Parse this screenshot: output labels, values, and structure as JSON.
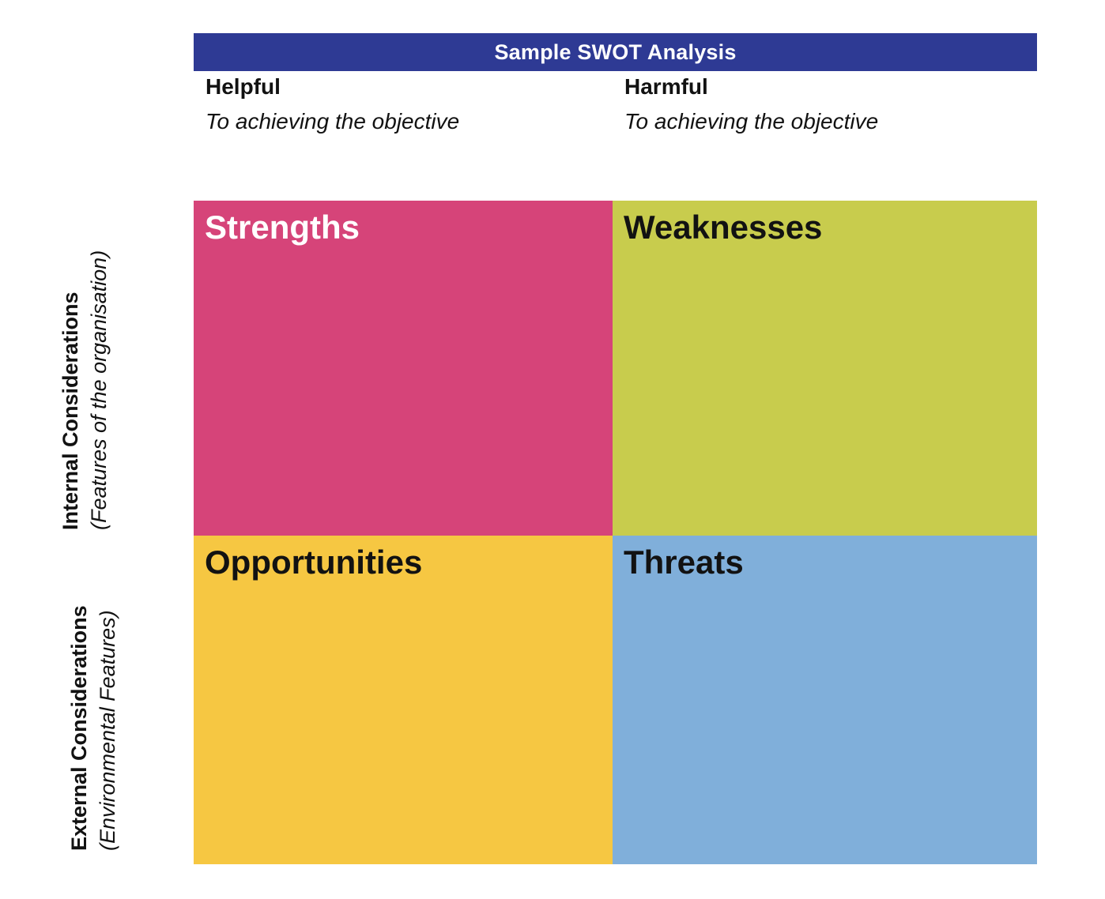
{
  "header": {
    "title": "Sample SWOT Analysis",
    "bg": "#2E3A94",
    "text_color": "#FFFFFF"
  },
  "columns": [
    {
      "label": "Helpful",
      "sublabel": "To achieving the objective"
    },
    {
      "label": "Harmful",
      "sublabel": "To achieving the objective"
    }
  ],
  "rows": [
    {
      "label": "Internal Considerations",
      "sublabel": "(Features of the organisation)"
    },
    {
      "label": "External Considerations",
      "sublabel": "(Environmental Features)"
    }
  ],
  "quadrants": [
    {
      "label": "Strengths",
      "bg": "#D64479",
      "text_color": "#FFFFFF"
    },
    {
      "label": "Weaknesses",
      "bg": "#C8CC4D",
      "text_color": "#121212"
    },
    {
      "label": "Opportunities",
      "bg": "#F6C742",
      "text_color": "#121212"
    },
    {
      "label": "Threats",
      "bg": "#80AFDA",
      "text_color": "#121212"
    }
  ]
}
